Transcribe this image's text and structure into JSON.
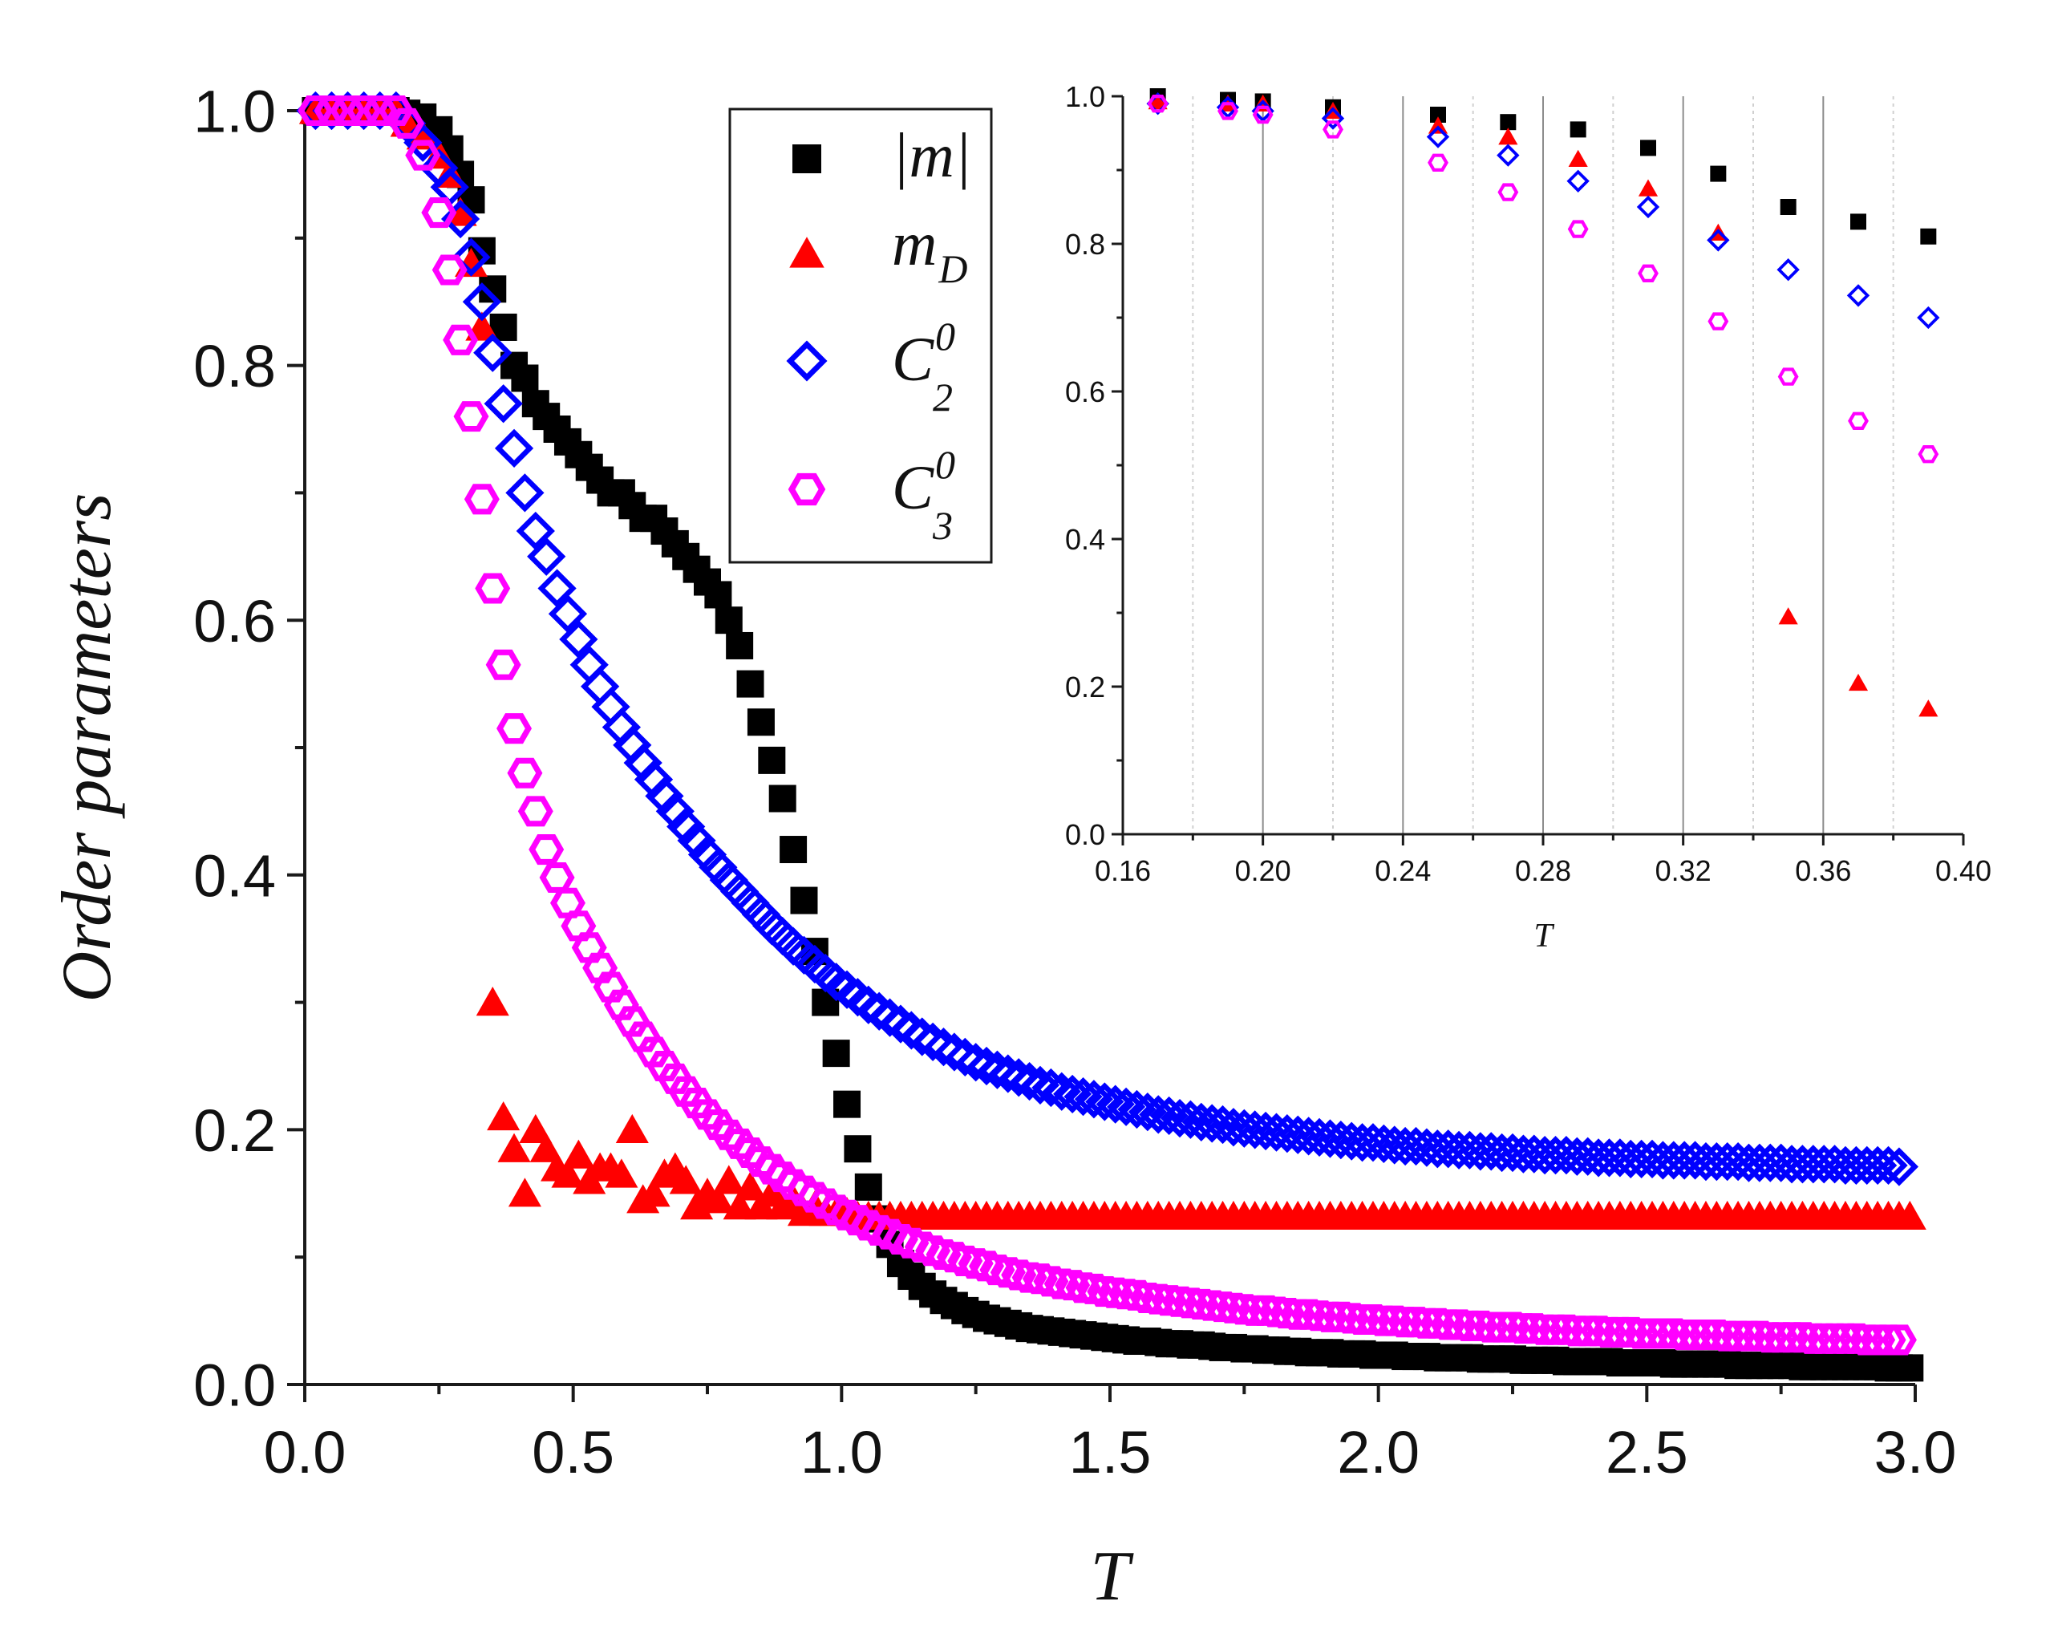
{
  "colors": {
    "m_abs": "#000000",
    "m_D": "#ff0000",
    "C20": "#0000ff",
    "C30": "#ff00ff",
    "axis": "#1a1a1a",
    "grid_major": "#8c8c8c",
    "grid_minor": "#d0d0d0"
  },
  "chart_data": [
    {
      "id": "main",
      "type": "scatter",
      "title": "",
      "xlabel": "T",
      "ylabel": "Order parameters",
      "xlim": [
        0,
        3.0
      ],
      "ylim": [
        0,
        1.0
      ],
      "xticks": [
        "0.0",
        "0.5",
        "1.0",
        "1.5",
        "2.0",
        "2.5",
        "3.0"
      ],
      "yticks": [
        "0.0",
        "0.2",
        "0.4",
        "0.6",
        "0.8",
        "1.0"
      ],
      "legend": {
        "position": "top-center",
        "entries": [
          {
            "series": "m_abs",
            "label": "|m|",
            "marker": "filled-square"
          },
          {
            "series": "m_D",
            "label": "m",
            "sub": "D",
            "marker": "filled-triangle"
          },
          {
            "series": "C20",
            "label": "C",
            "sub": "2",
            "sup": "0",
            "marker": "open-diamond"
          },
          {
            "series": "C30",
            "label": "C",
            "sub": "3",
            "sup": "0",
            "marker": "open-hexagon"
          }
        ]
      },
      "x": [
        0.02,
        0.05,
        0.08,
        0.11,
        0.14,
        0.17,
        0.19,
        0.22,
        0.25,
        0.27,
        0.29,
        0.31,
        0.33,
        0.35,
        0.37,
        0.39,
        0.41,
        0.43,
        0.45,
        0.47,
        0.49,
        0.51,
        0.53,
        0.55,
        0.57,
        0.59,
        0.61,
        0.63,
        0.65,
        0.67,
        0.69,
        0.71,
        0.73,
        0.75,
        0.77,
        0.79,
        0.81,
        0.83,
        0.85,
        0.87,
        0.89,
        0.91,
        0.93,
        0.95,
        0.97,
        0.99,
        1.01,
        1.03,
        1.05,
        1.07,
        1.09,
        1.11,
        1.13,
        1.15,
        1.17,
        1.19,
        1.21,
        1.23,
        1.25,
        1.27,
        1.29,
        1.31,
        1.33,
        1.35,
        1.37,
        1.39,
        1.41,
        1.43,
        1.45,
        1.47,
        1.49,
        1.51,
        1.53,
        1.55,
        1.57,
        1.59,
        1.61,
        1.63,
        1.65,
        1.67,
        1.69,
        1.71,
        1.73,
        1.75,
        1.77,
        1.79,
        1.81,
        1.83,
        1.85,
        1.87,
        1.89,
        1.91,
        1.93,
        1.95,
        1.97,
        1.99,
        2.01,
        2.03,
        2.05,
        2.07,
        2.09,
        2.11,
        2.13,
        2.15,
        2.17,
        2.19,
        2.21,
        2.23,
        2.25,
        2.27,
        2.29,
        2.31,
        2.33,
        2.35,
        2.37,
        2.39,
        2.41,
        2.43,
        2.45,
        2.47,
        2.49,
        2.51,
        2.53,
        2.55,
        2.57,
        2.59,
        2.61,
        2.63,
        2.65,
        2.67,
        2.69,
        2.71,
        2.73,
        2.75,
        2.77,
        2.79,
        2.81,
        2.83,
        2.85,
        2.87,
        2.89,
        2.91,
        2.93,
        2.95,
        2.97,
        2.99
      ],
      "series": [
        {
          "name": "m_abs",
          "label": "|m|",
          "values": [
            1.0,
            1.0,
            1.0,
            1.0,
            1.0,
            1.0,
            0.998,
            0.995,
            0.985,
            0.97,
            0.95,
            0.93,
            0.89,
            0.86,
            0.83,
            0.8,
            0.79,
            0.77,
            0.76,
            0.75,
            0.74,
            0.73,
            0.72,
            0.71,
            0.7,
            0.7,
            0.69,
            0.68,
            0.68,
            0.67,
            0.66,
            0.65,
            0.64,
            0.63,
            0.62,
            0.6,
            0.58,
            0.55,
            0.52,
            0.49,
            0.46,
            0.42,
            0.38,
            0.34,
            0.3,
            0.26,
            0.22,
            0.185,
            0.155,
            0.13,
            0.11,
            0.095,
            0.085,
            0.077,
            0.071,
            0.066,
            0.062,
            0.058,
            0.055,
            0.052,
            0.05,
            0.048,
            0.046,
            0.044,
            0.043,
            0.042,
            0.041,
            0.04,
            0.039,
            0.038,
            0.037,
            0.036,
            0.035,
            0.034,
            0.034,
            0.033,
            0.032,
            0.032,
            0.031,
            0.031,
            0.03,
            0.029,
            0.029,
            0.028,
            0.028,
            0.027,
            0.027,
            0.026,
            0.026,
            0.025,
            0.025,
            0.025,
            0.024,
            0.024,
            0.024,
            0.023,
            0.023,
            0.023,
            0.022,
            0.022,
            0.022,
            0.021,
            0.021,
            0.021,
            0.021,
            0.02,
            0.02,
            0.02,
            0.02,
            0.019,
            0.019,
            0.019,
            0.019,
            0.018,
            0.018,
            0.018,
            0.018,
            0.018,
            0.017,
            0.017,
            0.017,
            0.017,
            0.017,
            0.016,
            0.016,
            0.016,
            0.016,
            0.016,
            0.016,
            0.015,
            0.015,
            0.015,
            0.015,
            0.015,
            0.015,
            0.014,
            0.014,
            0.014,
            0.014,
            0.014,
            0.014,
            0.014,
            0.014,
            0.013,
            0.013,
            0.013
          ]
        },
        {
          "name": "m_D",
          "label": "m_D",
          "values": [
            1.0,
            1.0,
            1.0,
            1.0,
            1.0,
            1.0,
            0.99,
            0.98,
            0.965,
            0.95,
            0.92,
            0.88,
            0.83,
            0.3,
            0.21,
            0.185,
            0.15,
            0.2,
            0.185,
            0.17,
            0.165,
            0.18,
            0.16,
            0.17,
            0.17,
            0.165,
            0.2,
            0.145,
            0.15,
            0.165,
            0.17,
            0.16,
            0.14,
            0.15,
            0.145,
            0.16,
            0.14,
            0.155,
            0.14,
            0.15,
            0.14,
            0.145,
            0.135,
            0.14,
            0.135,
            0.135,
            0.135,
            0.132,
            0.132,
            0.132,
            0.132,
            0.132,
            0.132,
            0.132,
            0.132,
            0.132,
            0.132,
            0.132,
            0.132,
            0.132,
            0.132,
            0.132,
            0.132,
            0.132,
            0.132,
            0.132,
            0.132,
            0.132,
            0.132,
            0.132,
            0.132,
            0.132,
            0.132,
            0.132,
            0.132,
            0.132,
            0.132,
            0.132,
            0.132,
            0.132,
            0.132,
            0.132,
            0.132,
            0.132,
            0.132,
            0.132,
            0.132,
            0.132,
            0.132,
            0.132,
            0.132,
            0.132,
            0.132,
            0.132,
            0.132,
            0.132,
            0.132,
            0.132,
            0.132,
            0.132,
            0.132,
            0.132,
            0.132,
            0.132,
            0.132,
            0.132,
            0.132,
            0.132,
            0.132,
            0.132,
            0.132,
            0.132,
            0.132,
            0.132,
            0.132,
            0.132,
            0.132,
            0.132,
            0.132,
            0.132,
            0.132,
            0.132,
            0.132,
            0.132,
            0.132,
            0.132,
            0.132,
            0.132,
            0.132,
            0.132,
            0.132,
            0.132,
            0.132,
            0.132,
            0.132,
            0.132,
            0.132,
            0.132,
            0.132,
            0.132,
            0.132,
            0.132,
            0.132,
            0.132,
            0.132,
            0.132
          ]
        },
        {
          "name": "C20",
          "label": "C_2^0",
          "values": [
            1.0,
            1.0,
            1.0,
            1.0,
            1.0,
            1.0,
            0.99,
            0.975,
            0.955,
            0.94,
            0.915,
            0.885,
            0.85,
            0.81,
            0.77,
            0.735,
            0.7,
            0.67,
            0.65,
            0.625,
            0.605,
            0.585,
            0.565,
            0.548,
            0.532,
            0.516,
            0.502,
            0.488,
            0.475,
            0.462,
            0.45,
            0.438,
            0.427,
            0.416,
            0.406,
            0.396,
            0.387,
            0.378,
            0.369,
            0.36,
            0.352,
            0.344,
            0.337,
            0.33,
            0.323,
            0.316,
            0.31,
            0.304,
            0.298,
            0.293,
            0.288,
            0.283,
            0.278,
            0.273,
            0.269,
            0.265,
            0.261,
            0.257,
            0.253,
            0.25,
            0.247,
            0.244,
            0.241,
            0.238,
            0.235,
            0.233,
            0.23,
            0.228,
            0.226,
            0.224,
            0.222,
            0.22,
            0.218,
            0.216,
            0.214,
            0.212,
            0.211,
            0.209,
            0.208,
            0.206,
            0.205,
            0.204,
            0.202,
            0.201,
            0.2,
            0.199,
            0.198,
            0.197,
            0.196,
            0.195,
            0.194,
            0.193,
            0.192,
            0.191,
            0.19,
            0.19,
            0.189,
            0.188,
            0.187,
            0.187,
            0.186,
            0.185,
            0.185,
            0.184,
            0.184,
            0.183,
            0.183,
            0.182,
            0.182,
            0.181,
            0.181,
            0.18,
            0.18,
            0.18,
            0.179,
            0.179,
            0.178,
            0.178,
            0.178,
            0.177,
            0.177,
            0.177,
            0.176,
            0.176,
            0.176,
            0.176,
            0.175,
            0.175,
            0.175,
            0.175,
            0.174,
            0.174,
            0.174,
            0.174,
            0.173,
            0.173,
            0.173,
            0.173,
            0.173,
            0.172,
            0.172,
            0.172,
            0.172,
            0.172,
            0.171
          ]
        },
        {
          "name": "C30",
          "label": "C_3^0",
          "values": [
            1.0,
            1.0,
            1.0,
            1.0,
            1.0,
            1.0,
            0.99,
            0.965,
            0.92,
            0.875,
            0.82,
            0.76,
            0.695,
            0.625,
            0.565,
            0.515,
            0.48,
            0.45,
            0.42,
            0.398,
            0.378,
            0.36,
            0.343,
            0.327,
            0.312,
            0.298,
            0.285,
            0.273,
            0.261,
            0.25,
            0.24,
            0.23,
            0.221,
            0.212,
            0.204,
            0.196,
            0.189,
            0.182,
            0.175,
            0.169,
            0.163,
            0.157,
            0.152,
            0.147,
            0.142,
            0.137,
            0.133,
            0.129,
            0.125,
            0.121,
            0.118,
            0.114,
            0.111,
            0.108,
            0.105,
            0.102,
            0.1,
            0.097,
            0.095,
            0.093,
            0.09,
            0.088,
            0.086,
            0.084,
            0.083,
            0.081,
            0.079,
            0.078,
            0.076,
            0.075,
            0.073,
            0.072,
            0.071,
            0.07,
            0.068,
            0.067,
            0.066,
            0.065,
            0.064,
            0.063,
            0.062,
            0.061,
            0.06,
            0.059,
            0.058,
            0.058,
            0.057,
            0.056,
            0.055,
            0.055,
            0.054,
            0.053,
            0.053,
            0.052,
            0.051,
            0.051,
            0.05,
            0.05,
            0.049,
            0.049,
            0.048,
            0.048,
            0.047,
            0.047,
            0.046,
            0.046,
            0.045,
            0.045,
            0.045,
            0.044,
            0.044,
            0.043,
            0.043,
            0.043,
            0.042,
            0.042,
            0.042,
            0.041,
            0.041,
            0.041,
            0.04,
            0.04,
            0.04,
            0.04,
            0.039,
            0.039,
            0.039,
            0.039,
            0.038,
            0.038,
            0.038,
            0.038,
            0.037,
            0.037,
            0.037,
            0.037,
            0.036,
            0.036,
            0.036,
            0.036,
            0.036,
            0.035,
            0.035,
            0.035,
            0.035
          ]
        }
      ]
    },
    {
      "id": "inset",
      "type": "scatter",
      "title": "",
      "xlabel": "T",
      "ylabel": "",
      "xlim": [
        0.16,
        0.4
      ],
      "ylim": [
        0,
        1.0
      ],
      "grid": true,
      "xticks": [
        "0.16",
        "0.20",
        "0.24",
        "0.28",
        "0.32",
        "0.36",
        "0.40"
      ],
      "yticks": [
        "0.0",
        "0.2",
        "0.4",
        "0.6",
        "0.8",
        "1.0"
      ],
      "x": [
        0.17,
        0.19,
        0.2,
        0.22,
        0.25,
        0.27,
        0.29,
        0.31,
        0.33,
        0.35,
        0.37,
        0.39
      ],
      "series": [
        {
          "name": "m_abs",
          "values": [
            1.0,
            0.995,
            0.993,
            0.985,
            0.975,
            0.965,
            0.955,
            0.93,
            0.895,
            0.85,
            0.83,
            0.81
          ]
        },
        {
          "name": "m_D",
          "values": [
            0.993,
            0.99,
            0.99,
            0.98,
            0.96,
            0.945,
            0.915,
            0.875,
            0.815,
            0.295,
            0.205,
            0.17
          ]
        },
        {
          "name": "C20",
          "values": [
            0.99,
            0.985,
            0.98,
            0.97,
            0.945,
            0.92,
            0.885,
            0.85,
            0.805,
            0.765,
            0.73,
            0.7
          ]
        },
        {
          "name": "C30",
          "values": [
            0.99,
            0.98,
            0.975,
            0.955,
            0.91,
            0.87,
            0.82,
            0.76,
            0.695,
            0.62,
            0.56,
            0.515
          ]
        }
      ]
    }
  ]
}
